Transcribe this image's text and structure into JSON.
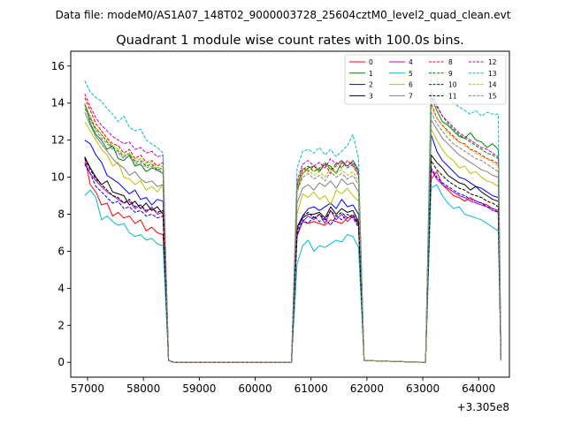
{
  "suptitle": "Data file: modeM0/AS1A07_148T02_9000003728_25604cztM0_level2_quad_clean.evt",
  "chart_data": {
    "type": "line",
    "title": "Quadrant 1 module wise count rates with 100.0s bins.",
    "xlabel": "",
    "ylabel": "",
    "x_offset_label": "+3.305e8",
    "xlim": [
      56700,
      64550
    ],
    "ylim": [
      -0.8,
      16.8
    ],
    "xticks": [
      57000,
      58000,
      59000,
      60000,
      61000,
      62000,
      63000,
      64000
    ],
    "xtick_labels": [
      "57000",
      "58000",
      "59000",
      "60000",
      "61000",
      "62000",
      "63000",
      "64000"
    ],
    "yticks": [
      0,
      2,
      4,
      6,
      8,
      10,
      12,
      14,
      16
    ],
    "ytick_labels": [
      "0",
      "2",
      "4",
      "6",
      "8",
      "10",
      "12",
      "14",
      "16"
    ],
    "legend_position": "top-right",
    "legend_columns": 4,
    "x": [
      56950,
      57050,
      57150,
      57250,
      57350,
      57450,
      57550,
      57650,
      57750,
      57850,
      57950,
      58050,
      58150,
      58250,
      58350,
      58450,
      58550,
      60650,
      60750,
      60850,
      60950,
      61050,
      61150,
      61250,
      61350,
      61450,
      61550,
      61650,
      61750,
      61850,
      61950,
      63050,
      63150,
      63250,
      63350,
      63450,
      63550,
      63650,
      63750,
      63850,
      63950,
      64050,
      64150,
      64250,
      64350,
      64400
    ],
    "series": [
      {
        "name": "0",
        "color": "#ff0000",
        "dash": "solid",
        "values": [
          11.1,
          9.6,
          9.2,
          8.5,
          8.6,
          7.9,
          8.1,
          7.8,
          7.9,
          7.5,
          7.7,
          7.1,
          7.3,
          7.0,
          6.9,
          0.1,
          0.0,
          0.0,
          6.8,
          7.6,
          7.5,
          7.6,
          7.5,
          7.4,
          7.7,
          7.6,
          7.5,
          7.8,
          7.9,
          7.5,
          0.1,
          0.0,
          9.9,
          10.3,
          9.6,
          9.3,
          9.0,
          8.9,
          8.7,
          8.9,
          8.7,
          8.6,
          8.5,
          8.3,
          8.2,
          0.1
        ]
      },
      {
        "name": "1",
        "color": "#008000",
        "dash": "solid",
        "values": [
          14.0,
          12.9,
          12.3,
          12.0,
          11.5,
          11.7,
          11.0,
          10.9,
          11.2,
          10.6,
          10.7,
          10.3,
          10.5,
          10.4,
          10.2,
          0.1,
          0.0,
          0.0,
          9.3,
          10.2,
          10.5,
          10.6,
          10.3,
          10.7,
          10.6,
          10.2,
          10.8,
          10.6,
          10.9,
          10.4,
          0.1,
          0.0,
          14.3,
          13.6,
          13.0,
          12.8,
          12.5,
          12.2,
          12.1,
          12.4,
          12.0,
          11.9,
          11.6,
          11.8,
          11.5,
          0.1
        ]
      },
      {
        "name": "2",
        "color": "#0000ff",
        "dash": "solid",
        "values": [
          12.0,
          11.8,
          11.2,
          10.8,
          10.1,
          9.9,
          9.7,
          9.4,
          9.1,
          9.3,
          8.8,
          8.9,
          8.5,
          8.8,
          8.7,
          0.1,
          0.0,
          0.0,
          7.3,
          7.9,
          8.3,
          8.4,
          8.2,
          8.4,
          8.6,
          8.3,
          8.8,
          8.4,
          8.5,
          8.0,
          0.1,
          0.0,
          12.3,
          11.4,
          10.9,
          10.6,
          10.3,
          10.0,
          9.9,
          9.7,
          9.5,
          9.4,
          9.2,
          9.0,
          8.9,
          0.1
        ]
      },
      {
        "name": "3",
        "color": "#000000",
        "dash": "solid",
        "values": [
          11.1,
          10.5,
          10.0,
          9.6,
          9.8,
          9.2,
          9.1,
          9.0,
          8.5,
          8.7,
          8.3,
          8.6,
          8.2,
          8.4,
          8.0,
          0.1,
          0.0,
          0.0,
          7.3,
          7.8,
          8.0,
          8.0,
          8.1,
          7.8,
          8.4,
          8.0,
          8.3,
          8.1,
          8.2,
          7.6,
          0.1,
          0.0,
          11.2,
          10.8,
          10.5,
          10.1,
          9.9,
          9.7,
          9.6,
          9.3,
          9.5,
          9.2,
          9.0,
          8.8,
          8.7,
          0.1
        ]
      },
      {
        "name": "4",
        "color": "#bf00bf",
        "dash": "solid",
        "values": [
          10.8,
          10.2,
          9.8,
          9.5,
          9.2,
          9.0,
          8.8,
          8.6,
          8.7,
          8.3,
          8.5,
          8.1,
          8.4,
          8.0,
          8.1,
          0.1,
          0.0,
          0.0,
          6.9,
          7.6,
          7.9,
          7.7,
          8.0,
          7.5,
          8.2,
          7.7,
          8.0,
          7.6,
          7.9,
          7.4,
          0.1,
          0.0,
          10.4,
          9.9,
          9.6,
          9.4,
          9.2,
          9.0,
          8.9,
          8.7,
          8.6,
          8.5,
          8.4,
          8.2,
          8.1,
          0.1
        ]
      },
      {
        "name": "5",
        "color": "#00bfbf",
        "dash": "solid",
        "values": [
          9.0,
          9.3,
          8.9,
          7.7,
          7.9,
          7.6,
          7.4,
          7.5,
          7.0,
          6.8,
          6.9,
          6.6,
          6.7,
          6.4,
          6.3,
          0.1,
          0.0,
          0.0,
          5.3,
          6.3,
          6.6,
          6.0,
          6.3,
          6.2,
          6.4,
          6.6,
          6.5,
          6.9,
          6.8,
          6.2,
          0.1,
          0.0,
          9.4,
          9.6,
          9.0,
          8.6,
          8.3,
          8.4,
          8.0,
          7.9,
          7.8,
          7.7,
          7.5,
          7.3,
          7.1,
          0.1
        ]
      },
      {
        "name": "6",
        "color": "#bfbf00",
        "dash": "solid",
        "values": [
          13.0,
          12.5,
          12.0,
          11.5,
          11.2,
          10.6,
          10.8,
          10.0,
          9.9,
          9.6,
          9.8,
          9.3,
          9.5,
          9.2,
          9.6,
          0.1,
          0.0,
          0.0,
          8.0,
          9.1,
          8.9,
          9.2,
          8.8,
          9.0,
          8.5,
          9.3,
          9.1,
          9.4,
          9.0,
          8.7,
          0.1,
          0.0,
          12.6,
          12.0,
          11.5,
          11.1,
          10.9,
          10.5,
          10.6,
          10.2,
          10.3,
          10.0,
          9.8,
          9.7,
          9.5,
          0.1
        ]
      },
      {
        "name": "7",
        "color": "#808080",
        "dash": "solid",
        "values": [
          13.5,
          12.8,
          12.2,
          11.8,
          11.4,
          11.0,
          10.7,
          10.5,
          10.1,
          10.3,
          9.9,
          9.7,
          9.8,
          9.5,
          9.6,
          0.1,
          0.0,
          0.0,
          8.6,
          9.4,
          9.6,
          9.3,
          9.7,
          9.5,
          9.8,
          9.4,
          9.9,
          9.6,
          9.7,
          9.2,
          0.1,
          0.0,
          13.1,
          12.6,
          12.1,
          11.8,
          11.5,
          11.2,
          11.0,
          10.8,
          10.6,
          10.4,
          10.3,
          10.1,
          10.0,
          0.1
        ]
      },
      {
        "name": "8",
        "color": "#ff0000",
        "dash": "dashed",
        "values": [
          14.3,
          13.6,
          12.9,
          12.5,
          12.1,
          11.8,
          11.7,
          11.3,
          11.5,
          11.0,
          11.2,
          10.8,
          10.9,
          10.6,
          10.8,
          0.1,
          0.0,
          0.0,
          9.6,
          10.5,
          10.3,
          10.6,
          10.4,
          10.7,
          10.2,
          10.8,
          10.5,
          10.9,
          10.6,
          10.1,
          0.1,
          0.0,
          14.0,
          13.2,
          12.8,
          12.5,
          12.2,
          11.9,
          11.8,
          11.5,
          11.4,
          11.2,
          11.0,
          10.9,
          10.7,
          0.1
        ]
      },
      {
        "name": "9",
        "color": "#008000",
        "dash": "dashed",
        "values": [
          13.9,
          13.2,
          12.6,
          12.3,
          11.9,
          11.6,
          11.4,
          11.1,
          11.3,
          10.8,
          10.9,
          10.6,
          10.7,
          10.4,
          10.5,
          0.1,
          0.0,
          0.0,
          9.5,
          10.4,
          10.6,
          10.3,
          10.5,
          10.8,
          10.4,
          10.6,
          10.9,
          10.5,
          10.7,
          10.2,
          0.1,
          0.0,
          14.6,
          13.9,
          13.3,
          12.9,
          12.6,
          12.3,
          12.1,
          11.9,
          11.7,
          11.5,
          11.3,
          11.2,
          11.0,
          0.1
        ]
      },
      {
        "name": "10",
        "color": "#0000ff",
        "dash": "dashed",
        "values": [
          10.7,
          10.2,
          9.5,
          9.2,
          8.9,
          8.6,
          8.7,
          8.3,
          8.4,
          8.1,
          8.2,
          7.9,
          8.0,
          7.8,
          7.9,
          0.1,
          0.0,
          0.0,
          6.9,
          7.7,
          7.5,
          7.9,
          7.6,
          7.8,
          7.4,
          7.9,
          7.7,
          8.0,
          7.8,
          7.3,
          0.1,
          0.0,
          10.5,
          10.0,
          9.7,
          9.5,
          9.3,
          9.1,
          9.0,
          8.8,
          8.7,
          8.6,
          8.4,
          8.3,
          8.1,
          0.1
        ]
      },
      {
        "name": "11",
        "color": "#000000",
        "dash": "dashed",
        "values": [
          11.0,
          10.4,
          9.9,
          9.6,
          9.3,
          9.0,
          8.9,
          8.6,
          8.8,
          8.4,
          8.5,
          8.2,
          8.3,
          8.1,
          8.2,
          0.1,
          0.0,
          0.0,
          7.1,
          7.9,
          8.1,
          7.8,
          8.0,
          7.7,
          8.2,
          7.9,
          8.1,
          7.8,
          8.0,
          7.5,
          0.1,
          0.0,
          10.9,
          10.4,
          10.1,
          9.8,
          9.6,
          9.4,
          9.3,
          9.1,
          9.0,
          8.9,
          8.7,
          8.6,
          8.4,
          0.1
        ]
      },
      {
        "name": "12",
        "color": "#bf00bf",
        "dash": "dashed",
        "values": [
          14.5,
          13.8,
          13.2,
          12.8,
          12.5,
          12.2,
          12.0,
          11.8,
          11.9,
          11.5,
          11.6,
          11.3,
          11.4,
          11.1,
          11.2,
          0.1,
          0.0,
          0.0,
          9.8,
          10.7,
          10.9,
          10.6,
          10.8,
          10.5,
          11.0,
          10.7,
          10.9,
          10.6,
          10.8,
          10.3,
          0.1,
          0.0,
          14.4,
          13.8,
          13.3,
          13.0,
          12.7,
          12.4,
          12.2,
          12.0,
          11.8,
          11.6,
          11.5,
          11.3,
          11.1,
          0.1
        ]
      },
      {
        "name": "13",
        "color": "#00bfbf",
        "dash": "dashed",
        "values": [
          15.2,
          14.6,
          14.3,
          14.1,
          13.7,
          13.4,
          13.0,
          13.3,
          12.7,
          12.5,
          12.6,
          12.0,
          11.8,
          11.6,
          11.3,
          0.1,
          0.0,
          0.0,
          10.5,
          11.4,
          11.5,
          11.3,
          11.6,
          11.2,
          11.5,
          11.1,
          11.4,
          11.7,
          12.3,
          11.0,
          0.1,
          0.0,
          15.8,
          15.3,
          14.6,
          14.3,
          14.0,
          13.8,
          13.6,
          13.4,
          13.6,
          13.3,
          13.5,
          13.4,
          13.4,
          0.1
        ]
      },
      {
        "name": "14",
        "color": "#bfbf00",
        "dash": "dashed",
        "values": [
          14.0,
          13.3,
          12.7,
          12.3,
          12.0,
          11.7,
          11.5,
          11.2,
          11.3,
          10.9,
          11.0,
          10.7,
          10.8,
          10.5,
          10.6,
          0.1,
          0.0,
          0.0,
          9.4,
          10.2,
          10.4,
          10.1,
          10.3,
          10.0,
          10.5,
          10.2,
          10.4,
          10.1,
          10.3,
          9.8,
          0.1,
          0.0,
          13.8,
          13.2,
          12.8,
          12.4,
          12.1,
          11.9,
          11.7,
          11.5,
          11.3,
          11.1,
          11.0,
          10.8,
          10.6,
          0.1
        ]
      },
      {
        "name": "15",
        "color": "#808080",
        "dash": "dashed",
        "values": [
          13.7,
          13.1,
          12.5,
          12.1,
          11.8,
          11.5,
          11.3,
          11.0,
          11.1,
          10.7,
          10.8,
          10.5,
          10.6,
          10.3,
          10.4,
          0.1,
          0.0,
          0.0,
          9.2,
          10.0,
          10.2,
          9.9,
          10.1,
          9.8,
          10.3,
          10.0,
          10.2,
          9.9,
          10.1,
          9.6,
          0.1,
          0.0,
          13.5,
          12.9,
          12.5,
          12.1,
          11.8,
          11.6,
          11.4,
          11.2,
          11.0,
          10.9,
          10.7,
          10.5,
          10.3,
          0.1
        ]
      }
    ]
  }
}
